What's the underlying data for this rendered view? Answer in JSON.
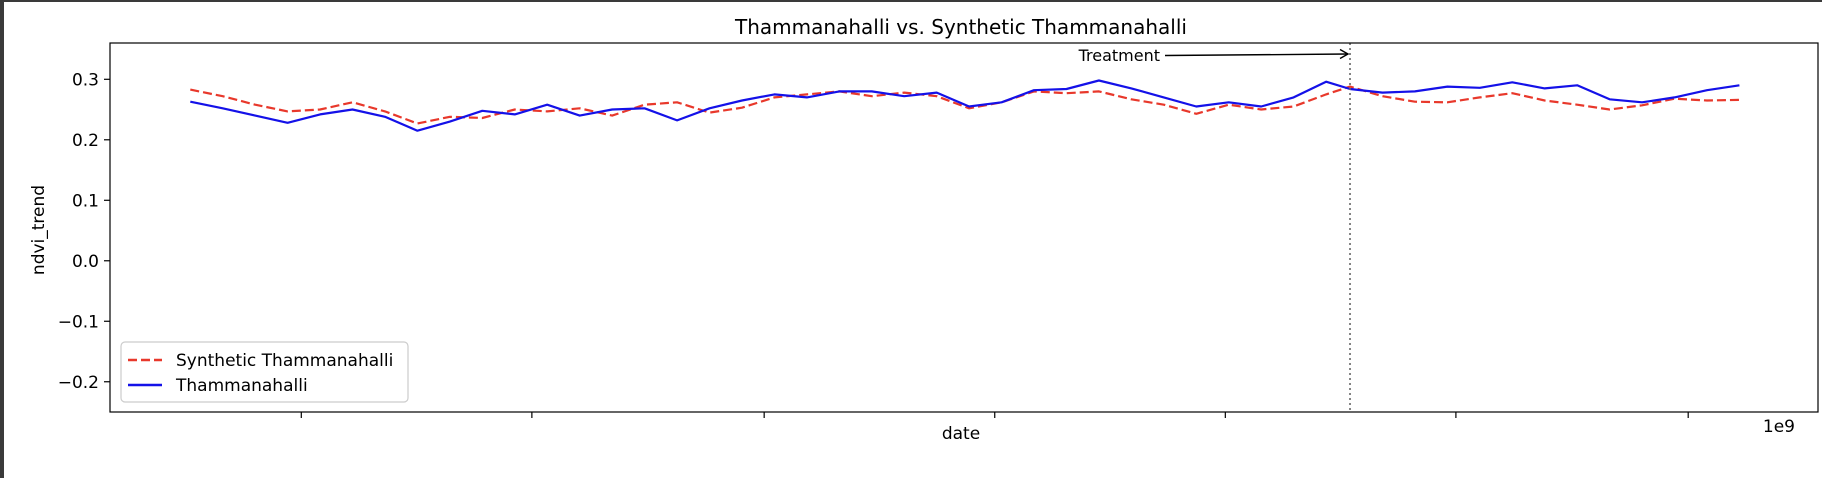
{
  "chart_data": {
    "type": "line",
    "title": "Thammanahalli vs. Synthetic Thammanahalli",
    "xlabel": "date",
    "ylabel": "ndvi_trend",
    "x_offset_label": "1e9",
    "xlim": [
      0,
      100
    ],
    "ylim": [
      -0.25,
      0.36
    ],
    "yticks": [
      -0.2,
      -0.1,
      0.0,
      0.1,
      0.2,
      0.3
    ],
    "ytick_labels": [
      "−0.2",
      "−0.1",
      "0.0",
      "0.1",
      "0.2",
      "0.3"
    ],
    "xticks": [
      11.2,
      24.7,
      38.3,
      51.8,
      65.3,
      78.8,
      92.4
    ],
    "grid": false,
    "legend_position": "lower-left",
    "treatment": {
      "x": 72.6,
      "label": "Treatment"
    },
    "x": [
      4.7,
      6.6,
      8.5,
      10.4,
      12.3,
      14.2,
      16.1,
      18.0,
      19.9,
      21.8,
      23.7,
      25.6,
      27.5,
      29.4,
      31.3,
      33.2,
      35.1,
      37.0,
      38.9,
      40.8,
      42.7,
      44.6,
      46.5,
      48.4,
      50.3,
      52.2,
      54.1,
      56.0,
      57.9,
      59.8,
      61.7,
      63.6,
      65.5,
      67.4,
      69.3,
      71.2,
      72.6,
      74.5,
      76.4,
      78.3,
      80.2,
      82.1,
      84.0,
      85.9,
      87.8,
      89.7,
      91.6,
      93.5,
      95.4
    ],
    "series": [
      {
        "name": "Synthetic Thammanahalli",
        "color": "#e8382b",
        "style": "dashed",
        "values": [
          0.283,
          0.272,
          0.258,
          0.247,
          0.25,
          0.262,
          0.247,
          0.227,
          0.238,
          0.236,
          0.25,
          0.247,
          0.252,
          0.24,
          0.258,
          0.262,
          0.245,
          0.253,
          0.27,
          0.275,
          0.28,
          0.272,
          0.278,
          0.272,
          0.252,
          0.262,
          0.28,
          0.277,
          0.28,
          0.267,
          0.258,
          0.243,
          0.258,
          0.25,
          0.255,
          0.275,
          0.288,
          0.272,
          0.263,
          0.262,
          0.27,
          0.277,
          0.265,
          0.258,
          0.25,
          0.257,
          0.268,
          0.265,
          0.266
        ]
      },
      {
        "name": "Thammanahalli",
        "color": "#1411e8",
        "style": "solid",
        "values": [
          0.263,
          0.252,
          0.24,
          0.228,
          0.242,
          0.25,
          0.238,
          0.215,
          0.23,
          0.248,
          0.242,
          0.258,
          0.24,
          0.25,
          0.252,
          0.232,
          0.252,
          0.265,
          0.275,
          0.27,
          0.28,
          0.28,
          0.272,
          0.278,
          0.255,
          0.262,
          0.282,
          0.284,
          0.298,
          0.285,
          0.27,
          0.255,
          0.262,
          0.255,
          0.27,
          0.296,
          0.284,
          0.278,
          0.28,
          0.288,
          0.286,
          0.295,
          0.285,
          0.29,
          0.267,
          0.262,
          0.27,
          0.282,
          0.29
        ]
      }
    ]
  }
}
